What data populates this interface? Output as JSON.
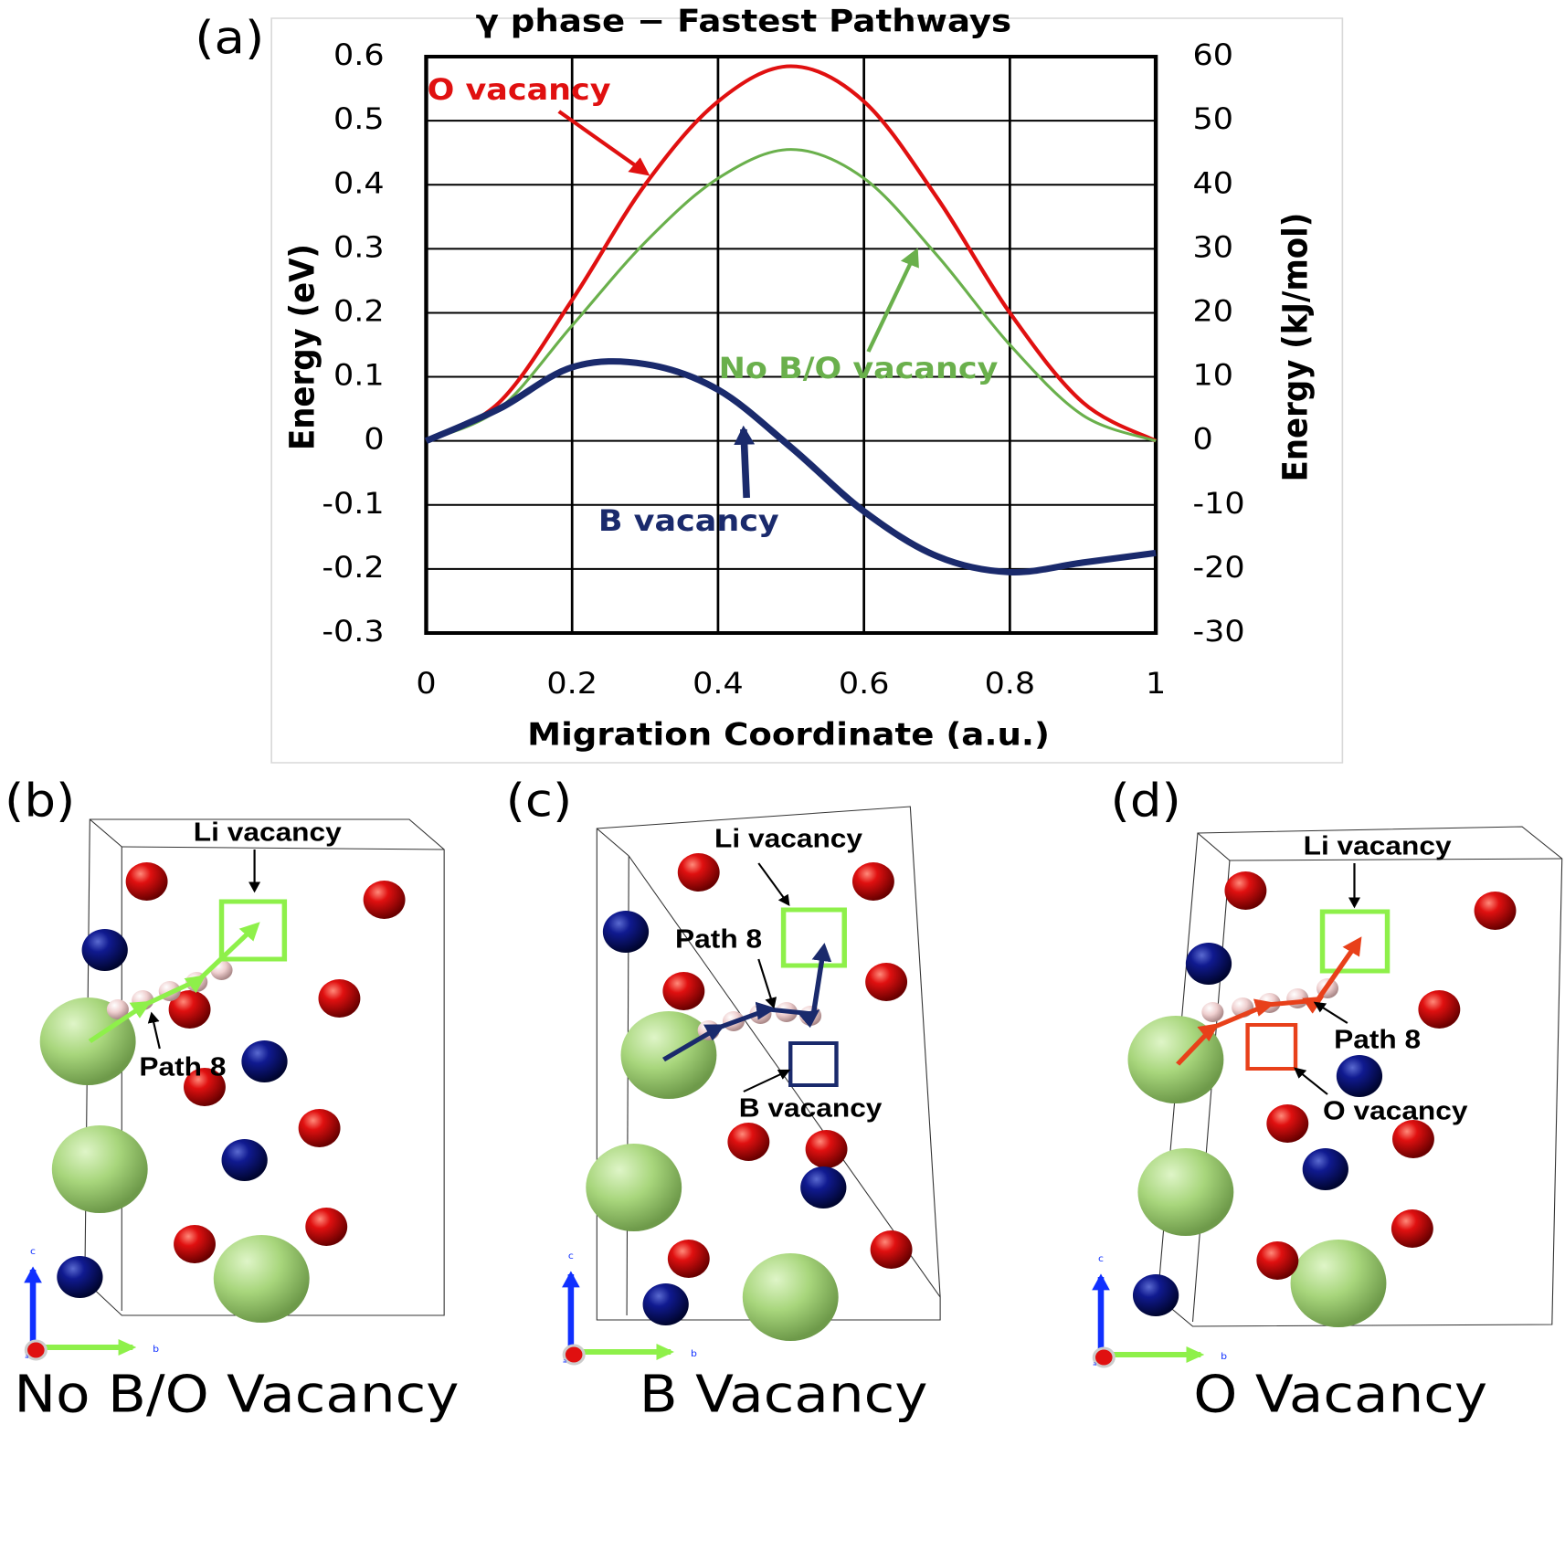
{
  "chart_data": {
    "type": "line",
    "panel_label": "(a)",
    "title": "γ phase − Fastest Pathways",
    "x_label": "Migration Coordinate (a.u.)",
    "y_label": "Energy (eV)",
    "y2_label": "Energy (kJ/mol)",
    "x": [
      0,
      0.1,
      0.2,
      0.3,
      0.4,
      0.5,
      0.6,
      0.7,
      0.8,
      0.9,
      1
    ],
    "series": [
      {
        "name": "O vacancy",
        "color": "#e01010",
        "values": [
          0,
          0.06,
          0.22,
          0.4,
          0.53,
          0.585,
          0.53,
          0.38,
          0.2,
          0.06,
          0
        ]
      },
      {
        "name": "No B/O vacancy",
        "color": "#6ab04c",
        "values": [
          0,
          0.05,
          0.18,
          0.31,
          0.41,
          0.455,
          0.41,
          0.29,
          0.15,
          0.04,
          0
        ]
      },
      {
        "name": "B vacancy",
        "color": "#1a2a6c",
        "values": [
          0,
          0.05,
          0.115,
          0.12,
          0.08,
          -0.01,
          -0.11,
          -0.18,
          -0.205,
          -0.19,
          -0.175
        ]
      }
    ],
    "xlim": [
      0,
      1
    ],
    "xticks": [
      0,
      0.2,
      0.4,
      0.6,
      0.8,
      1
    ],
    "ylim": [
      -0.3,
      0.6
    ],
    "yticks": [
      -0.3,
      -0.2,
      -0.1,
      0,
      0.1,
      0.2,
      0.3,
      0.4,
      0.5,
      0.6
    ],
    "y2lim": [
      -30,
      60
    ],
    "y2ticks": [
      -30,
      -20,
      -10,
      0,
      10,
      20,
      30,
      40,
      50,
      60
    ],
    "grid": true
  },
  "panels": [
    {
      "label": "(b)",
      "li_vacancy": "Li vacancy",
      "path": "Path 8",
      "caption": "No B/O Vacancy",
      "axes": [
        "c",
        "b",
        "a"
      ]
    },
    {
      "label": "(c)",
      "li_vacancy": "Li vacancy",
      "path": "Path 8",
      "other_vacancy": "B vacancy",
      "caption": "B Vacancy",
      "axes": [
        "c",
        "b",
        "a"
      ]
    },
    {
      "label": "(d)",
      "li_vacancy": "Li vacancy",
      "path": "Path 8",
      "other_vacancy": "O vacancy",
      "caption": "O Vacancy",
      "axes": [
        "c",
        "b",
        "a"
      ]
    }
  ]
}
